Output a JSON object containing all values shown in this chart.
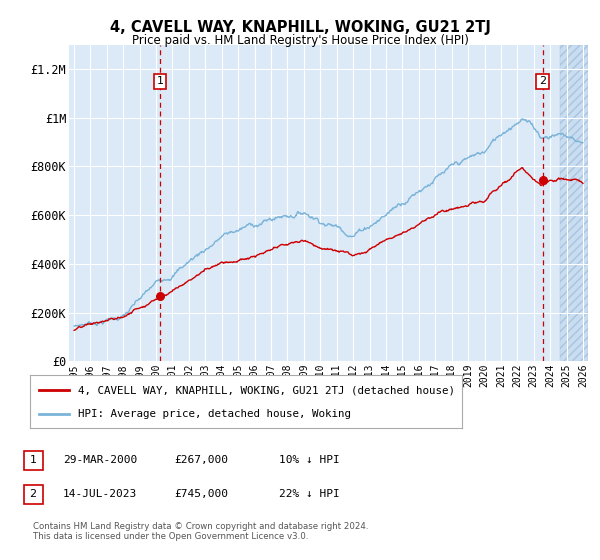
{
  "title": "4, CAVELL WAY, KNAPHILL, WOKING, GU21 2TJ",
  "subtitle": "Price paid vs. HM Land Registry's House Price Index (HPI)",
  "ylabel_ticks": [
    "£0",
    "£200K",
    "£400K",
    "£600K",
    "£800K",
    "£1M",
    "£1.2M"
  ],
  "ytick_values": [
    0,
    200000,
    400000,
    600000,
    800000,
    1000000,
    1200000
  ],
  "ylim": [
    0,
    1300000
  ],
  "xlim_start": 1994.7,
  "xlim_end": 2026.3,
  "sale1": {
    "date_x": 2000.24,
    "price": 267000,
    "label": "1",
    "pct": "10% ↓ HPI",
    "date_str": "29-MAR-2000"
  },
  "sale2": {
    "date_x": 2023.54,
    "price": 745000,
    "label": "2",
    "pct": "22% ↓ HPI",
    "date_str": "14-JUL-2023"
  },
  "hpi_color": "#7ab4d8",
  "sale_color": "#cc0000",
  "vline_color": "#cc0000",
  "box_color": "#cc0000",
  "bg_color": "#dce9f7",
  "grid_color": "#ffffff",
  "legend_label_red": "4, CAVELL WAY, KNAPHILL, WOKING, GU21 2TJ (detached house)",
  "legend_label_blue": "HPI: Average price, detached house, Woking",
  "footer": "Contains HM Land Registry data © Crown copyright and database right 2024.\nThis data is licensed under the Open Government Licence v3.0."
}
